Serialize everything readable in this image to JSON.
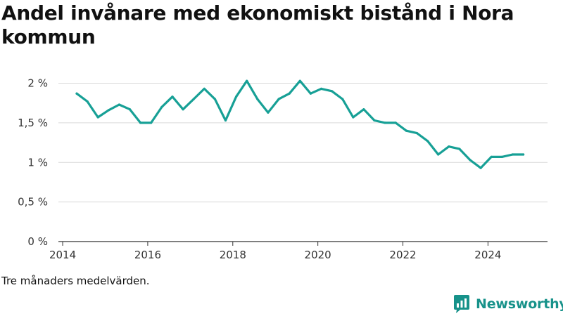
{
  "header": {
    "title": "Andel invånare med ekonomiskt bistånd i Nora kommun"
  },
  "footer": {
    "note": "Tre månaders medelvärden.",
    "brand": "Newsworthy"
  },
  "colors": {
    "line": "#17a096",
    "grid": "#d9d9d9",
    "axis": "#333333",
    "brand": "#17928a"
  },
  "chart_data": {
    "type": "line",
    "title": "Andel invånare med ekonomiskt bistånd i Nora kommun",
    "xlabel": "",
    "ylabel": "",
    "xlim": [
      2013.9,
      2025.4
    ],
    "ylim": [
      0,
      2.2
    ],
    "x_ticks": [
      2014,
      2016,
      2018,
      2020,
      2022,
      2024
    ],
    "x_tick_labels": [
      "2014",
      "2016",
      "2018",
      "2020",
      "2022",
      "2024"
    ],
    "y_ticks": [
      0,
      0.5,
      1,
      1.5,
      2
    ],
    "y_tick_labels": [
      "0 %",
      "0,5 %",
      "1 %",
      "1,5 %",
      "2 %"
    ],
    "grid": true,
    "legend": "none",
    "series": [
      {
        "x": [
          2014.33,
          2014.58,
          2014.83,
          2015.08,
          2015.33,
          2015.58,
          2015.83,
          2016.08,
          2016.33,
          2016.58,
          2016.83,
          2017.08,
          2017.33,
          2017.58,
          2017.83,
          2018.08,
          2018.33,
          2018.58,
          2018.83,
          2019.08,
          2019.33,
          2019.58,
          2019.83,
          2020.08,
          2020.33,
          2020.58,
          2020.83,
          2021.08,
          2021.33,
          2021.58,
          2021.83,
          2022.08,
          2022.33,
          2022.58,
          2022.83,
          2023.08,
          2023.33,
          2023.58,
          2023.83,
          2024.08,
          2024.33,
          2024.58,
          2024.83
        ],
        "values": [
          1.87,
          1.77,
          1.57,
          1.66,
          1.73,
          1.67,
          1.5,
          1.5,
          1.7,
          1.83,
          1.67,
          1.8,
          1.93,
          1.8,
          1.53,
          1.83,
          2.03,
          1.8,
          1.63,
          1.8,
          1.87,
          2.03,
          1.87,
          1.93,
          1.9,
          1.8,
          1.57,
          1.67,
          1.53,
          1.5,
          1.5,
          1.4,
          1.37,
          1.27,
          1.1,
          1.2,
          1.17,
          1.03,
          0.93,
          1.07,
          1.07,
          1.1,
          1.1
        ]
      }
    ]
  }
}
